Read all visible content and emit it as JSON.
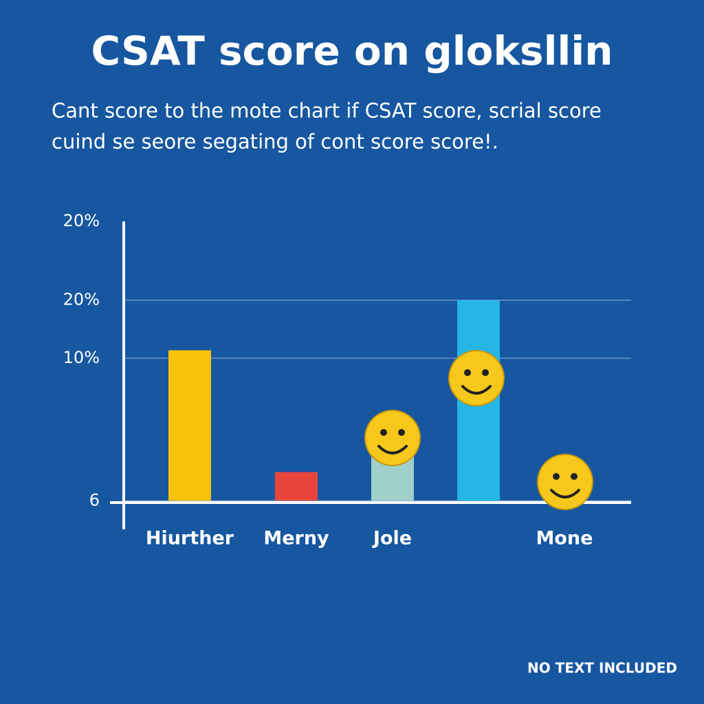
{
  "chart_data": {
    "type": "bar",
    "title": "CSAT score on gloksllin",
    "subtitle": [
      "Cant score to the mote chart if CSAT score, scrial score",
      "cuind se seore segating of cont score score!."
    ],
    "categories": [
      "Hiurther",
      "Merny",
      "Jole",
      null,
      "Mone"
    ],
    "values": [
      16.5,
      8,
      10.5,
      20,
      null
    ],
    "colors": [
      "#f9c10a",
      "#e8463c",
      "#9fd0c9",
      "#25b6e4",
      "#25b6e4"
    ],
    "ylim": [
      4,
      25.5
    ],
    "yticks": [
      {
        "value": 20,
        "label": "20%"
      },
      {
        "value": 6,
        "label": "6"
      }
    ],
    "axis_annotations": [
      "20%",
      "10%"
    ],
    "grid": true,
    "footer": "NO TEXT INCLUDED"
  }
}
